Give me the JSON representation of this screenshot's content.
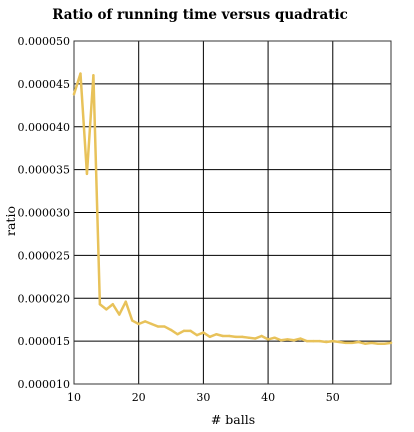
{
  "chart_data": {
    "type": "line",
    "title": "Ratio of running time versus quadratic",
    "xlabel": "# balls",
    "ylabel": "ratio",
    "xlim": [
      10,
      59
    ],
    "ylim": [
      1e-05,
      5e-05
    ],
    "x_ticks": [
      10,
      20,
      30,
      40,
      50
    ],
    "y_ticks": [
      1e-05,
      1.5e-05,
      2e-05,
      2.5e-05,
      3e-05,
      3.5e-05,
      4e-05,
      4.5e-05,
      5e-05
    ],
    "x_tick_labels": [
      "10",
      "20",
      "30",
      "40",
      "50"
    ],
    "y_tick_labels": [
      "0.000010",
      "0.000015",
      "0.000020",
      "0.000025",
      "0.000030",
      "0.000035",
      "0.000040",
      "0.000045",
      "0.000050"
    ],
    "grid": true,
    "legend": "none",
    "colors": {
      "series_line": "#e8c25a",
      "grid": "#000000",
      "axis_frame": "#333333"
    },
    "series": [
      {
        "x": [
          10,
          11,
          12,
          13,
          14,
          15,
          16,
          17,
          18,
          19,
          20,
          21,
          22,
          23,
          24,
          25,
          26,
          27,
          28,
          29,
          30,
          31,
          32,
          33,
          34,
          35,
          36,
          37,
          38,
          39,
          40,
          41,
          42,
          43,
          44,
          45,
          46,
          47,
          48,
          49,
          50,
          51,
          52,
          53,
          54,
          55,
          56,
          57,
          58,
          59
        ],
        "y": [
          4.38e-05,
          4.62e-05,
          3.45e-05,
          4.6e-05,
          1.93e-05,
          1.87e-05,
          1.93e-05,
          1.81e-05,
          1.96e-05,
          1.74e-05,
          1.7e-05,
          1.73e-05,
          1.7e-05,
          1.67e-05,
          1.67e-05,
          1.63e-05,
          1.58e-05,
          1.62e-05,
          1.62e-05,
          1.57e-05,
          1.6e-05,
          1.55e-05,
          1.58e-05,
          1.56e-05,
          1.56e-05,
          1.55e-05,
          1.55e-05,
          1.54e-05,
          1.53e-05,
          1.56e-05,
          1.52e-05,
          1.54e-05,
          1.51e-05,
          1.52e-05,
          1.51e-05,
          1.53e-05,
          1.5e-05,
          1.5e-05,
          1.5e-05,
          1.49e-05,
          1.5e-05,
          1.49e-05,
          1.48e-05,
          1.48e-05,
          1.49e-05,
          1.47e-05,
          1.48e-05,
          1.47e-05,
          1.47e-05,
          1.48e-05
        ]
      }
    ]
  }
}
